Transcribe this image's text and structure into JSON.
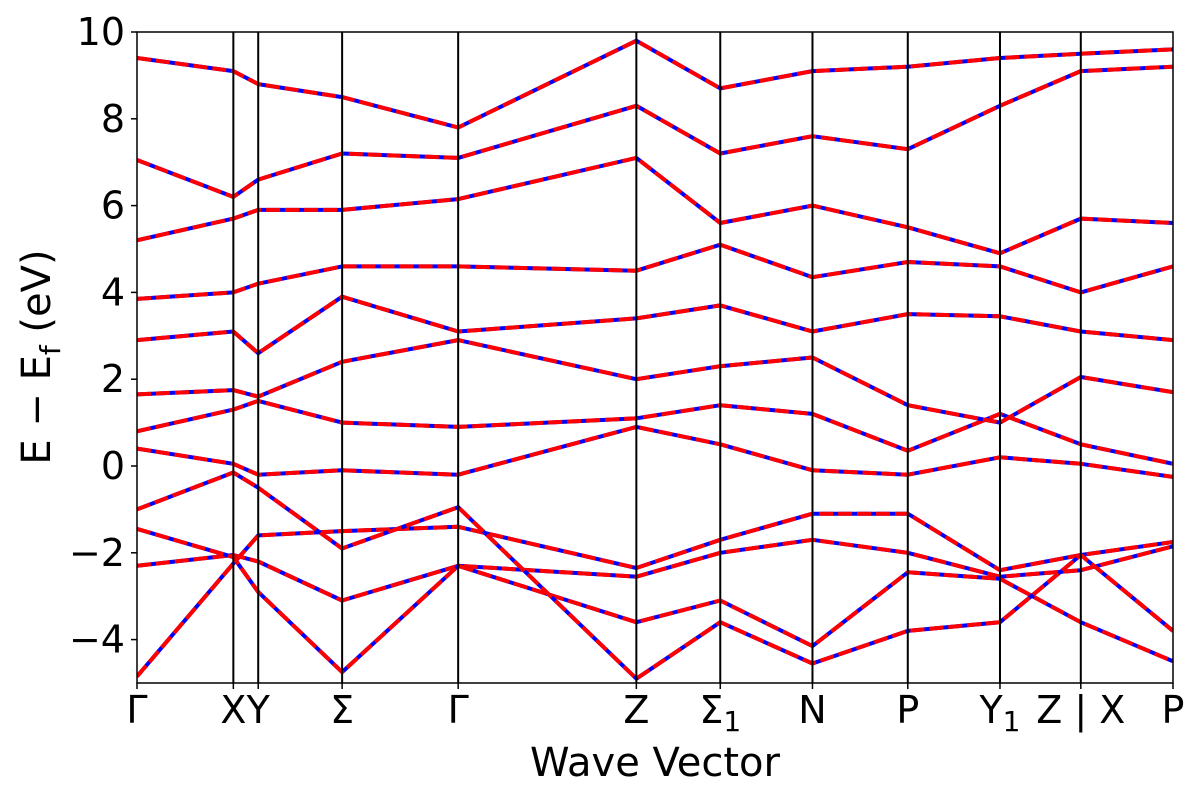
{
  "chart_data": {
    "type": "line",
    "title": "",
    "xlabel": "Wave Vector",
    "ylabel": "E − E_f (eV)",
    "ylabel_main": "E  −  E",
    "ylabel_sub": "f",
    "ylabel_unit": " (eV)",
    "ylim": [
      -5,
      10
    ],
    "grid": false,
    "legend": "none",
    "y_ticks": [
      {
        "value": -4,
        "label": "−4"
      },
      {
        "value": -2,
        "label": "−2"
      },
      {
        "value": 0,
        "label": "0"
      },
      {
        "value": 2,
        "label": "2"
      },
      {
        "value": 4,
        "label": "4"
      },
      {
        "value": 6,
        "label": "6"
      },
      {
        "value": 8,
        "label": "8"
      },
      {
        "value": 10,
        "label": "10"
      }
    ],
    "k_path": [
      {
        "label": "Γ",
        "sub": "",
        "k": 0.0
      },
      {
        "label": "X",
        "sub": "",
        "k": 0.093
      },
      {
        "label": "Y",
        "sub": "",
        "k": 0.117
      },
      {
        "label": "Σ",
        "sub": "",
        "k": 0.198
      },
      {
        "label": "Γ",
        "sub": "",
        "k": 0.31
      },
      {
        "label": "Z",
        "sub": "",
        "k": 0.482
      },
      {
        "label": "Σ",
        "sub": "1",
        "k": 0.563
      },
      {
        "label": "N",
        "sub": "",
        "k": 0.652
      },
      {
        "label": "P",
        "sub": "",
        "k": 0.744
      },
      {
        "label": "Y",
        "sub": "1",
        "k": 0.833
      },
      {
        "label": "Z | X",
        "sub": "",
        "k": 0.911
      },
      {
        "label": "P",
        "sub": "",
        "k": 1.0
      }
    ],
    "series_colors": {
      "reference": "#0000ff",
      "overlay": "#ff0000"
    },
    "bands": [
      [
        [
          0,
          -4.85
        ],
        [
          0.093,
          -2.25
        ],
        [
          0.117,
          -1.6
        ],
        [
          0.198,
          -1.5
        ],
        [
          0.31,
          -1.4
        ],
        [
          0.482,
          -2.35
        ],
        [
          0.563,
          -1.7
        ],
        [
          0.652,
          -1.1
        ],
        [
          0.744,
          -1.1
        ],
        [
          0.833,
          -2.4
        ],
        [
          0.911,
          -2.05
        ],
        [
          1.0,
          -1.75
        ]
      ],
      [
        [
          0,
          -2.3
        ],
        [
          0.093,
          -2.05
        ],
        [
          0.117,
          -2.2
        ],
        [
          0.198,
          -3.1
        ],
        [
          0.31,
          -2.3
        ],
        [
          0.482,
          -2.55
        ],
        [
          0.563,
          -2.0
        ],
        [
          0.652,
          -1.7
        ],
        [
          0.744,
          -2.0
        ],
        [
          0.833,
          -2.55
        ],
        [
          0.911,
          -2.4
        ],
        [
          1.0,
          -1.85
        ]
      ],
      [
        [
          0,
          -1.45
        ],
        [
          0.093,
          -2.1
        ],
        [
          0.117,
          -2.9
        ],
        [
          0.198,
          -4.75
        ],
        [
          0.31,
          -2.3
        ],
        [
          0.482,
          -3.6
        ],
        [
          0.563,
          -3.1
        ],
        [
          0.652,
          -4.15
        ],
        [
          0.744,
          -2.45
        ],
        [
          0.833,
          -2.6
        ],
        [
          0.911,
          -3.6
        ],
        [
          1.0,
          -4.5
        ]
      ],
      [
        [
          0,
          -1.0
        ],
        [
          0.093,
          -0.15
        ],
        [
          0.117,
          -0.5
        ],
        [
          0.198,
          -1.9
        ],
        [
          0.31,
          -0.95
        ],
        [
          0.482,
          -4.9
        ],
        [
          0.563,
          -3.6
        ],
        [
          0.652,
          -4.55
        ],
        [
          0.744,
          -3.8
        ],
        [
          0.833,
          -3.6
        ],
        [
          0.911,
          -2.05
        ],
        [
          1.0,
          -3.8
        ]
      ],
      [
        [
          0,
          0.4
        ],
        [
          0.093,
          0.05
        ],
        [
          0.117,
          -0.2
        ],
        [
          0.198,
          -0.1
        ],
        [
          0.31,
          -0.2
        ],
        [
          0.482,
          0.9
        ],
        [
          0.563,
          0.5
        ],
        [
          0.652,
          -0.1
        ],
        [
          0.744,
          -0.2
        ],
        [
          0.833,
          0.2
        ],
        [
          0.911,
          0.05
        ],
        [
          1.0,
          -0.25
        ]
      ],
      [
        [
          0,
          0.8
        ],
        [
          0.093,
          1.3
        ],
        [
          0.117,
          1.5
        ],
        [
          0.198,
          1.0
        ],
        [
          0.31,
          0.9
        ],
        [
          0.482,
          1.1
        ],
        [
          0.563,
          1.4
        ],
        [
          0.652,
          1.2
        ],
        [
          0.744,
          0.35
        ],
        [
          0.833,
          1.2
        ],
        [
          0.911,
          0.5
        ],
        [
          1.0,
          0.05
        ]
      ],
      [
        [
          0,
          1.65
        ],
        [
          0.093,
          1.75
        ],
        [
          0.117,
          1.6
        ],
        [
          0.198,
          2.4
        ],
        [
          0.31,
          2.9
        ],
        [
          0.482,
          2.0
        ],
        [
          0.563,
          2.3
        ],
        [
          0.652,
          2.5
        ],
        [
          0.744,
          1.4
        ],
        [
          0.833,
          1.0
        ],
        [
          0.911,
          2.05
        ],
        [
          1.0,
          1.7
        ]
      ],
      [
        [
          0,
          2.9
        ],
        [
          0.093,
          3.1
        ],
        [
          0.117,
          2.6
        ],
        [
          0.198,
          3.9
        ],
        [
          0.31,
          3.1
        ],
        [
          0.482,
          3.4
        ],
        [
          0.563,
          3.7
        ],
        [
          0.652,
          3.1
        ],
        [
          0.744,
          3.5
        ],
        [
          0.833,
          3.45
        ],
        [
          0.911,
          3.1
        ],
        [
          1.0,
          2.9
        ]
      ],
      [
        [
          0,
          3.85
        ],
        [
          0.093,
          4.0
        ],
        [
          0.117,
          4.2
        ],
        [
          0.198,
          4.6
        ],
        [
          0.31,
          4.6
        ],
        [
          0.482,
          4.5
        ],
        [
          0.563,
          5.1
        ],
        [
          0.652,
          4.35
        ],
        [
          0.744,
          4.7
        ],
        [
          0.833,
          4.6
        ],
        [
          0.911,
          4.0
        ],
        [
          1.0,
          4.6
        ]
      ],
      [
        [
          0,
          5.2
        ],
        [
          0.093,
          5.7
        ],
        [
          0.117,
          5.9
        ],
        [
          0.198,
          5.9
        ],
        [
          0.31,
          6.15
        ],
        [
          0.482,
          7.1
        ],
        [
          0.563,
          5.6
        ],
        [
          0.652,
          6.0
        ],
        [
          0.744,
          5.5
        ],
        [
          0.833,
          4.9
        ],
        [
          0.911,
          5.7
        ],
        [
          1.0,
          5.6
        ]
      ],
      [
        [
          0,
          7.05
        ],
        [
          0.093,
          6.2
        ],
        [
          0.117,
          6.6
        ],
        [
          0.198,
          7.2
        ],
        [
          0.31,
          7.1
        ],
        [
          0.482,
          8.3
        ],
        [
          0.563,
          7.2
        ],
        [
          0.652,
          7.6
        ],
        [
          0.744,
          7.3
        ],
        [
          0.833,
          8.3
        ],
        [
          0.911,
          9.1
        ],
        [
          1.0,
          9.2
        ]
      ],
      [
        [
          0,
          9.4
        ],
        [
          0.093,
          9.1
        ],
        [
          0.117,
          8.8
        ],
        [
          0.198,
          8.5
        ],
        [
          0.31,
          7.8
        ],
        [
          0.482,
          9.8
        ],
        [
          0.563,
          8.7
        ],
        [
          0.652,
          9.1
        ],
        [
          0.744,
          9.2
        ],
        [
          0.833,
          9.4
        ],
        [
          0.911,
          9.5
        ],
        [
          1.0,
          9.6
        ]
      ]
    ]
  }
}
